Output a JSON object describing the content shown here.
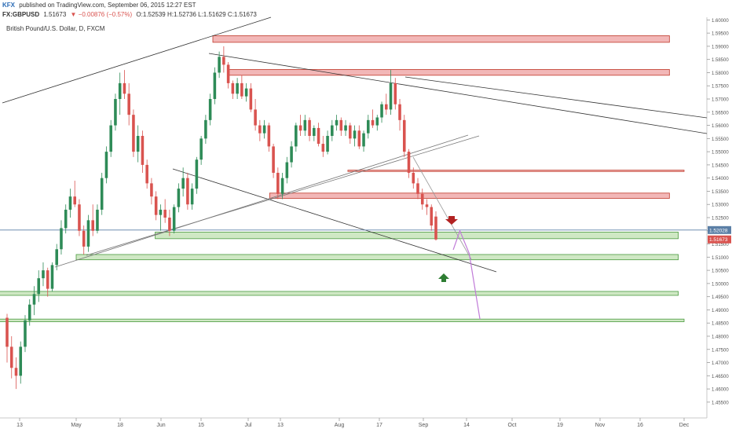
{
  "header": {
    "line1_user": "KFX",
    "line1_rest": "published on TradingView.com, September 06, 2015 12:27 EST",
    "line2_symbol": "FX:GBPUSD",
    "line2_price": "1.51673",
    "line2_change": "▼ −0.00876 (−0.57%)",
    "line2_ohlc": "O:1.52539 H:1.52736 L:1.51629 C:1.51673"
  },
  "instrument_title": "British Pound/U.S. Dollar, D, FXCM",
  "colors": {
    "up": "#2e8b57",
    "down": "#d9534f",
    "resistance_fill": "#f2b7b7",
    "resistance_stroke": "#c0392b",
    "support_fill": "#cfe8c4",
    "support_stroke": "#4a9a3f",
    "projection": "#c07ad8",
    "arrow_down": "#b22222",
    "arrow_up": "#2e7d32",
    "price_line": "#5b7fa6"
  },
  "chart_data": {
    "type": "candlestick",
    "y_axis": {
      "ylim": [
        1.449,
        1.601
      ],
      "ticks": [
        "1.45500",
        "1.46000",
        "1.46500",
        "1.47000",
        "1.47500",
        "1.48000",
        "1.48500",
        "1.49000",
        "1.49500",
        "1.50000",
        "1.50500",
        "1.51000",
        "1.51500",
        "1.52000",
        "1.52500",
        "1.53000",
        "1.53500",
        "1.54000",
        "1.54500",
        "1.55000",
        "1.55500",
        "1.56000",
        "1.56500",
        "1.57000",
        "1.57500",
        "1.58000",
        "1.58500",
        "1.59000",
        "1.59500",
        "1.60000"
      ]
    },
    "x_axis": {
      "ticks": [
        {
          "label": "13",
          "date": "2015-04-13"
        },
        {
          "label": "May",
          "date": "2015-05-01"
        },
        {
          "label": "18",
          "date": "2015-05-18"
        },
        {
          "label": "Jun",
          "date": "2015-06-01"
        },
        {
          "label": "15",
          "date": "2015-06-15"
        },
        {
          "label": "Jul",
          "date": "2015-07-01"
        },
        {
          "label": "13",
          "date": "2015-07-13"
        },
        {
          "label": "Aug",
          "date": "2015-08-03"
        },
        {
          "label": "17",
          "date": "2015-08-17"
        },
        {
          "label": "Sep",
          "date": "2015-09-01"
        },
        {
          "label": "14",
          "date": "2015-09-14"
        },
        {
          "label": "Oct",
          "date": "2015-10-01"
        },
        {
          "label": "19",
          "date": "2015-10-19"
        },
        {
          "label": "Nov",
          "date": "2015-11-02"
        },
        {
          "label": "16",
          "date": "2015-11-16"
        },
        {
          "label": "Dec",
          "date": "2015-12-01"
        }
      ]
    },
    "price_labels": [
      {
        "value": 1.52028,
        "text": "1.52028",
        "color": "#5b7fa6"
      },
      {
        "value": 1.51673,
        "text": "1.51673",
        "color": "#d9534f"
      }
    ],
    "candles": [
      [
        1.487,
        1.4885,
        1.47,
        1.476
      ],
      [
        1.476,
        1.48,
        1.464,
        1.468
      ],
      [
        1.468,
        1.472,
        1.46,
        1.465
      ],
      [
        1.465,
        1.478,
        1.462,
        1.476
      ],
      [
        1.476,
        1.488,
        1.474,
        1.486
      ],
      [
        1.486,
        1.494,
        1.484,
        1.492
      ],
      [
        1.492,
        1.499,
        1.488,
        1.496
      ],
      [
        1.496,
        1.505,
        1.493,
        1.502
      ],
      [
        1.502,
        1.508,
        1.499,
        1.505
      ],
      [
        1.505,
        1.506,
        1.495,
        1.498
      ],
      [
        1.498,
        1.508,
        1.497,
        1.507
      ],
      [
        1.507,
        1.515,
        1.505,
        1.513
      ],
      [
        1.513,
        1.524,
        1.511,
        1.521
      ],
      [
        1.521,
        1.53,
        1.519,
        1.528
      ],
      [
        1.528,
        1.536,
        1.525,
        1.533
      ],
      [
        1.533,
        1.539,
        1.529,
        1.53
      ],
      [
        1.53,
        1.532,
        1.518,
        1.52
      ],
      [
        1.52,
        1.522,
        1.511,
        1.514
      ],
      [
        1.514,
        1.526,
        1.512,
        1.524
      ],
      [
        1.524,
        1.53,
        1.518,
        1.52
      ],
      [
        1.52,
        1.53,
        1.519,
        1.528
      ],
      [
        1.528,
        1.542,
        1.526,
        1.54
      ],
      [
        1.54,
        1.552,
        1.538,
        1.55
      ],
      [
        1.55,
        1.562,
        1.548,
        1.56
      ],
      [
        1.56,
        1.572,
        1.558,
        1.57
      ],
      [
        1.57,
        1.58,
        1.564,
        1.576
      ],
      [
        1.576,
        1.581,
        1.57,
        1.572
      ],
      [
        1.572,
        1.576,
        1.56,
        1.564
      ],
      [
        1.564,
        1.566,
        1.548,
        1.55
      ],
      [
        1.55,
        1.56,
        1.546,
        1.556
      ],
      [
        1.556,
        1.558,
        1.542,
        1.545
      ],
      [
        1.545,
        1.547,
        1.536,
        1.538
      ],
      [
        1.538,
        1.54,
        1.53,
        1.533
      ],
      [
        1.533,
        1.535,
        1.524,
        1.526
      ],
      [
        1.526,
        1.53,
        1.52,
        1.528
      ],
      [
        1.528,
        1.532,
        1.523,
        1.525
      ],
      [
        1.525,
        1.528,
        1.518,
        1.52
      ],
      [
        1.52,
        1.53,
        1.519,
        1.529
      ],
      [
        1.529,
        1.538,
        1.527,
        1.536
      ],
      [
        1.536,
        1.544,
        1.533,
        1.54
      ],
      [
        1.54,
        1.542,
        1.528,
        1.53
      ],
      [
        1.53,
        1.538,
        1.528,
        1.536
      ],
      [
        1.536,
        1.548,
        1.534,
        1.547
      ],
      [
        1.547,
        1.556,
        1.545,
        1.555
      ],
      [
        1.555,
        1.564,
        1.553,
        1.562
      ],
      [
        1.562,
        1.572,
        1.56,
        1.57
      ],
      [
        1.57,
        1.582,
        1.568,
        1.58
      ],
      [
        1.58,
        1.588,
        1.578,
        1.586
      ],
      [
        1.586,
        1.59,
        1.58,
        1.583
      ],
      [
        1.583,
        1.584,
        1.574,
        1.576
      ],
      [
        1.576,
        1.577,
        1.57,
        1.572
      ],
      [
        1.572,
        1.578,
        1.57,
        1.576
      ],
      [
        1.576,
        1.579,
        1.57,
        1.571
      ],
      [
        1.571,
        1.576,
        1.569,
        1.574
      ],
      [
        1.574,
        1.576,
        1.565,
        1.566
      ],
      [
        1.566,
        1.57,
        1.558,
        1.56
      ],
      [
        1.56,
        1.562,
        1.554,
        1.557
      ],
      [
        1.557,
        1.562,
        1.555,
        1.56
      ],
      [
        1.56,
        1.561,
        1.55,
        1.552
      ],
      [
        1.552,
        1.553,
        1.54,
        1.542
      ],
      [
        1.542,
        1.544,
        1.532,
        1.534
      ],
      [
        1.534,
        1.542,
        1.532,
        1.54
      ],
      [
        1.54,
        1.548,
        1.538,
        1.546
      ],
      [
        1.546,
        1.554,
        1.544,
        1.552
      ],
      [
        1.552,
        1.561,
        1.55,
        1.56
      ],
      [
        1.56,
        1.564,
        1.556,
        1.558
      ],
      [
        1.558,
        1.564,
        1.556,
        1.562
      ],
      [
        1.562,
        1.563,
        1.554,
        1.556
      ],
      [
        1.556,
        1.56,
        1.554,
        1.559
      ],
      [
        1.559,
        1.561,
        1.552,
        1.553
      ],
      [
        1.553,
        1.556,
        1.548,
        1.55
      ],
      [
        1.55,
        1.558,
        1.549,
        1.556
      ],
      [
        1.556,
        1.562,
        1.554,
        1.56
      ],
      [
        1.56,
        1.564,
        1.558,
        1.562
      ],
      [
        1.562,
        1.563,
        1.556,
        1.558
      ],
      [
        1.558,
        1.562,
        1.556,
        1.56
      ],
      [
        1.56,
        1.561,
        1.553,
        1.555
      ],
      [
        1.555,
        1.56,
        1.552,
        1.558
      ],
      [
        1.558,
        1.56,
        1.551,
        1.552
      ],
      [
        1.552,
        1.558,
        1.55,
        1.557
      ],
      [
        1.557,
        1.564,
        1.555,
        1.562
      ],
      [
        1.562,
        1.566,
        1.559,
        1.56
      ],
      [
        1.56,
        1.564,
        1.558,
        1.563
      ],
      [
        1.563,
        1.569,
        1.561,
        1.568
      ],
      [
        1.568,
        1.572,
        1.564,
        1.566
      ],
      [
        1.566,
        1.581,
        1.564,
        1.576
      ],
      [
        1.576,
        1.578,
        1.566,
        1.568
      ],
      [
        1.568,
        1.57,
        1.558,
        1.562
      ],
      [
        1.562,
        1.564,
        1.548,
        1.55
      ],
      [
        1.55,
        1.551,
        1.54,
        1.542
      ],
      [
        1.542,
        1.544,
        1.536,
        1.538
      ],
      [
        1.538,
        1.54,
        1.532,
        1.534
      ],
      [
        1.534,
        1.536,
        1.528,
        1.53
      ],
      [
        1.53,
        1.532,
        1.526,
        1.529
      ],
      [
        1.529,
        1.53,
        1.52,
        1.522
      ],
      [
        1.5254,
        1.5274,
        1.5163,
        1.5167
      ]
    ],
    "annotations": {
      "resistance_zones": [
        {
          "from": "2015-06-19",
          "to": "2015-11-26",
          "low": 1.5915,
          "high": 1.594
        },
        {
          "from": "2015-06-24",
          "to": "2015-11-26",
          "low": 1.579,
          "high": 1.5812
        },
        {
          "from": "2015-08-06",
          "to": "2015-12-01",
          "low": 1.5425,
          "high": 1.543
        },
        {
          "from": "2015-07-09",
          "to": "2015-11-26",
          "low": 1.5323,
          "high": 1.5343
        }
      ],
      "support_zones": [
        {
          "from": "2015-05-30",
          "to": "2015-11-29",
          "low": 1.517,
          "high": 1.5195
        },
        {
          "from": "2015-05-01",
          "to": "2015-11-29",
          "low": 1.509,
          "high": 1.511
        },
        {
          "from": "2015-04-03",
          "to": "2015-11-29",
          "low": 1.4955,
          "high": 1.497
        },
        {
          "from": "2015-04-03",
          "to": "2015-12-01",
          "low": 1.4855,
          "high": 1.4865
        }
      ],
      "projection": [
        {
          "date": "2015-09-10",
          "value": 1.5128
        },
        {
          "date": "2015-09-12",
          "value": 1.52
        },
        {
          "date": "2015-09-15",
          "value": 1.5114
        },
        {
          "date": "2015-09-19",
          "value": 1.4865
        }
      ]
    }
  }
}
